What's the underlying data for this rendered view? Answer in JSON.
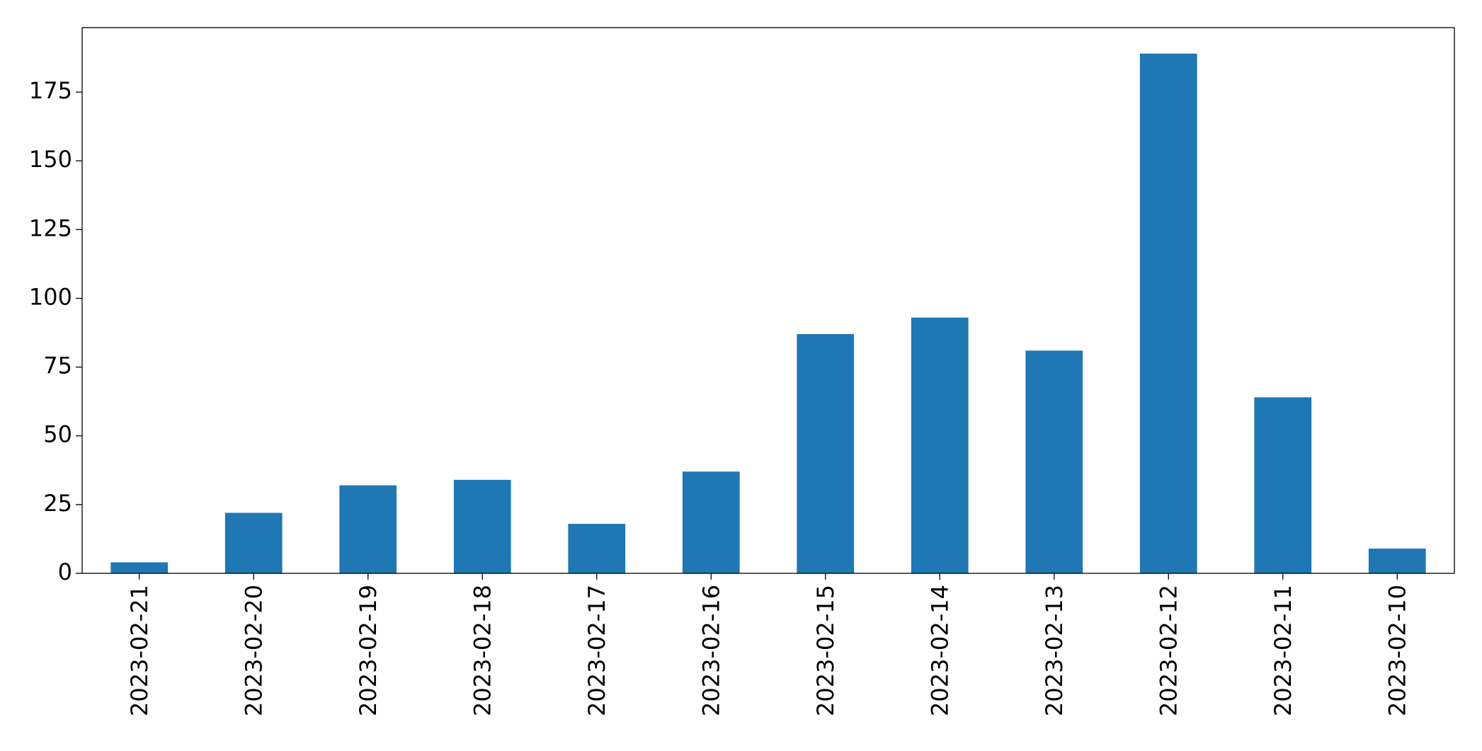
{
  "chart_data": {
    "type": "bar",
    "categories": [
      "2023-02-21",
      "2023-02-20",
      "2023-02-19",
      "2023-02-18",
      "2023-02-17",
      "2023-02-16",
      "2023-02-15",
      "2023-02-14",
      "2023-02-13",
      "2023-02-12",
      "2023-02-11",
      "2023-02-10"
    ],
    "values": [
      4,
      22,
      32,
      34,
      18,
      37,
      87,
      93,
      81,
      189,
      64,
      9
    ],
    "color": "#1f77b4",
    "ylim": [
      0,
      198.45
    ],
    "yticks": [
      0,
      25,
      50,
      75,
      100,
      125,
      150,
      175
    ],
    "grid": false
  }
}
